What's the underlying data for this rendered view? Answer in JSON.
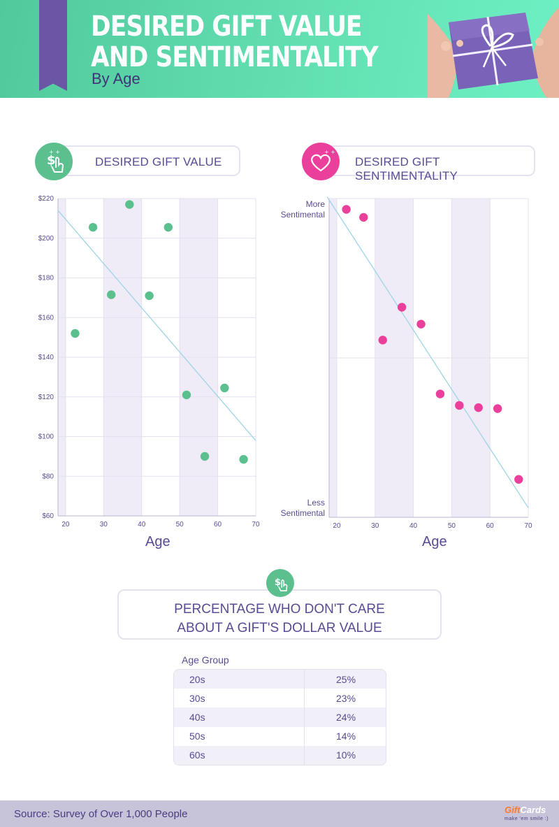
{
  "header": {
    "title_line1": "DESIRED GIFT VALUE",
    "title_line2": "AND SENTIMENTALITY",
    "subtitle": "By Age"
  },
  "colors": {
    "header_green": "#5fdcaf",
    "purple": "#6a56a4",
    "value_dot": "#5cc08e",
    "senti_dot": "#ea3f9b",
    "trend": "#9ed4e6",
    "band": "#efecf7"
  },
  "icons": {
    "value_badge": "dollar-hand-icon",
    "senti_badge": "heart-icon",
    "pct_badge": "dollar-hand-icon"
  },
  "value_chart": {
    "label": "DESIRED GIFT VALUE",
    "x_title": "Age",
    "x_ticks": [
      "20",
      "30",
      "40",
      "50",
      "60",
      "70"
    ],
    "y_ticks": [
      "$220",
      "$200",
      "$180",
      "$160",
      "$140",
      "$120",
      "$100",
      "$80",
      "$60"
    ]
  },
  "senti_chart": {
    "label": "DESIRED GIFT SENTIMENTALITY",
    "x_title": "Age",
    "x_ticks": [
      "20",
      "30",
      "40",
      "50",
      "60",
      "70"
    ],
    "y_top_1": "More",
    "y_top_2": "Sentimental",
    "y_bottom_1": "Less",
    "y_bottom_2": "Sentimental"
  },
  "chart_data": [
    {
      "type": "scatter",
      "title": "DESIRED GIFT VALUE",
      "xlabel": "Age",
      "ylabel": "",
      "xlim": [
        18,
        70
      ],
      "ylim": [
        60,
        220
      ],
      "x": [
        22.5,
        27.2,
        32,
        36.8,
        42,
        47,
        51.8,
        56.6,
        61.8,
        66.8
      ],
      "y": [
        152,
        205.5,
        171.5,
        217,
        171,
        205.5,
        121,
        90,
        124.5,
        88.5
      ],
      "trendline": {
        "x": [
          18,
          70
        ],
        "y": [
          214,
          98
        ]
      },
      "bands_x": [
        [
          18,
          20
        ],
        [
          30,
          40
        ],
        [
          50,
          60
        ]
      ]
    },
    {
      "type": "scatter",
      "title": "DESIRED GIFT SENTIMENTALITY",
      "xlabel": "Age",
      "ylabel": "",
      "y_scale": "qualitative (Less Sentimental to More Sentimental)",
      "xlim": [
        18,
        70
      ],
      "ylim": [
        0,
        100
      ],
      "x": [
        22.5,
        27,
        32,
        37,
        42,
        47,
        52,
        57,
        62,
        67.5
      ],
      "y": [
        96.6,
        94.1,
        55.6,
        65.9,
        60.6,
        38.7,
        35.1,
        34.4,
        34.1,
        11.9
      ],
      "trendline": {
        "x": [
          17.5,
          70
        ],
        "y": [
          100.5,
          3
        ]
      },
      "bands_x": [
        [
          18,
          20
        ],
        [
          30,
          40
        ],
        [
          50,
          60
        ]
      ]
    },
    {
      "type": "table",
      "title": "PERCENTAGE WHO DON'T CARE ABOUT A GIFT'S DOLLAR VALUE",
      "columns": [
        "Age Group",
        ""
      ],
      "rows": [
        [
          "20s",
          "25%"
        ],
        [
          "30s",
          "23%"
        ],
        [
          "40s",
          "24%"
        ],
        [
          "50s",
          "14%"
        ],
        [
          "60s",
          "10%"
        ]
      ]
    }
  ],
  "pct_section": {
    "title_line1": "PERCENTAGE WHO DON'T CARE",
    "title_line2": "ABOUT A GIFT'S DOLLAR VALUE",
    "column_label": "Age Group",
    "rows": [
      {
        "age": "20s",
        "value": "25%"
      },
      {
        "age": "30s",
        "value": "23%"
      },
      {
        "age": "40s",
        "value": "24%"
      },
      {
        "age": "50s",
        "value": "14%"
      },
      {
        "age": "60s",
        "value": "10%"
      }
    ]
  },
  "footer": {
    "source": "Source: Survey of Over 1,000 People",
    "logo_gift": "Gift",
    "logo_cards": "Cards",
    "logo_tagline": "make 'em smile :)"
  }
}
